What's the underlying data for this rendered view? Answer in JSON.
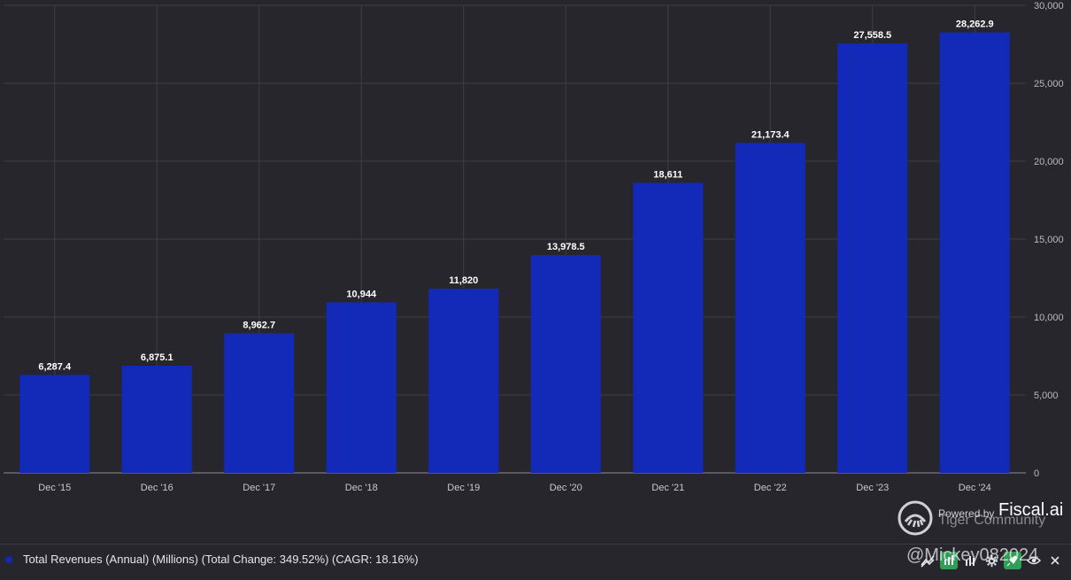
{
  "chart_data": {
    "type": "bar",
    "categories": [
      "Dec '15",
      "Dec '16",
      "Dec '17",
      "Dec '18",
      "Dec '19",
      "Dec '20",
      "Dec '21",
      "Dec '22",
      "Dec '23",
      "Dec '24"
    ],
    "values": [
      6287.4,
      6875.1,
      8962.7,
      10944,
      11820,
      13978.5,
      18611,
      21173.4,
      27558.5,
      28262.9
    ],
    "data_labels": [
      "6,287.4",
      "6,875.1",
      "8,962.7",
      "10,944",
      "11,820",
      "13,978.5",
      "18,611",
      "21,173.4",
      "27,558.5",
      "28,262.9"
    ],
    "ylim": [
      0,
      30000
    ],
    "yticks": [
      0,
      5000,
      10000,
      15000,
      20000,
      25000,
      30000
    ],
    "ytick_labels": [
      "0",
      "5,000",
      "10,000",
      "15,000",
      "20,000",
      "25,000",
      "30,000"
    ],
    "y_axis_side": "right",
    "grid": true,
    "series_name": "Total Revenues (Annual) (Millions) (Total Change: 349.52%) (CAGR: 18.16%)",
    "bar_color": "#1329b8"
  },
  "watermark": {
    "powered_by": "Powered by",
    "brand": "Fiscal.ai",
    "community": "Tiger Community",
    "user": "@Mickey082024"
  },
  "footer": {
    "legend_label": "Total Revenues (Annual) (Millions) (Total Change: 349.52%) (CAGR: 18.16%)",
    "legend_color": "#1329b8",
    "icons": [
      "trend-lines-icon",
      "chart-settings-icon",
      "bar-chart-icon",
      "gear-icon",
      "pin-icon",
      "eye-icon",
      "close-icon"
    ]
  }
}
